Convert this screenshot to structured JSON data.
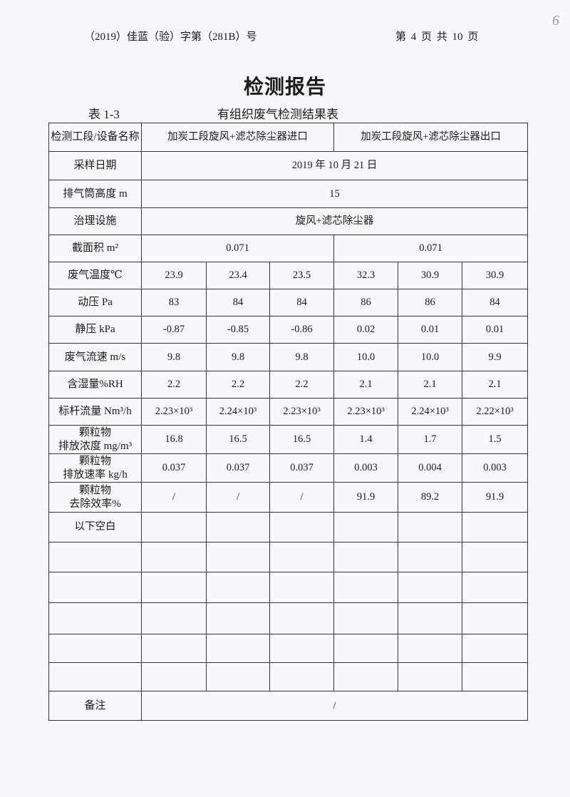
{
  "header": {
    "doc_number": "（2019）佳蓝（验）字第（281B）号",
    "page_info": "第 4 页 共 10 页",
    "handwritten_page": "6"
  },
  "title": "检测报告",
  "table_number": "表 1-3",
  "table_title": "有组织废气检测结果表",
  "table": {
    "section_label": "检测工段/设备名称",
    "inlet": "加炭工段旋风+滤芯除尘器进口",
    "outlet": "加炭工段旋风+滤芯除尘器出口",
    "sampling_date_label": "采样日期",
    "sampling_date": "2019 年 10 月 21 日",
    "stack_height_label": "排气筒高度 m",
    "stack_height": "15",
    "treatment_label": "治理设施",
    "treatment": "旋风+滤芯除尘器",
    "area_label": "截面积 m²",
    "area_inlet": "0.071",
    "area_outlet": "0.071",
    "rows": [
      {
        "label": "废气温度℃",
        "values": [
          "23.9",
          "23.4",
          "23.5",
          "32.3",
          "30.9",
          "30.9"
        ]
      },
      {
        "label": "动压 Pa",
        "values": [
          "83",
          "84",
          "84",
          "86",
          "86",
          "84"
        ]
      },
      {
        "label": "静压 kPa",
        "values": [
          "-0.87",
          "-0.85",
          "-0.86",
          "0.02",
          "0.01",
          "0.01"
        ]
      },
      {
        "label": "废气流速 m/s",
        "values": [
          "9.8",
          "9.8",
          "9.8",
          "10.0",
          "10.0",
          "9.9"
        ]
      },
      {
        "label": "含湿量%RH",
        "values": [
          "2.2",
          "2.2",
          "2.2",
          "2.1",
          "2.1",
          "2.1"
        ]
      },
      {
        "label": "标杆流量 Nm³/h",
        "values": [
          "2.23×10³",
          "2.24×10³",
          "2.23×10³",
          "2.23×10³",
          "2.24×10³",
          "2.22×10³"
        ]
      },
      {
        "label": "颗粒物\n排放浓度 mg/m³",
        "values": [
          "16.8",
          "16.5",
          "16.5",
          "1.4",
          "1.7",
          "1.5"
        ]
      },
      {
        "label": "颗粒物\n排放速率 kg/h",
        "values": [
          "0.037",
          "0.037",
          "0.037",
          "0.003",
          "0.004",
          "0.003"
        ]
      },
      {
        "label": "颗粒物\n去除效率%",
        "values": [
          "/",
          "/",
          "/",
          "91.9",
          "89.2",
          "91.9"
        ]
      }
    ],
    "blank_note": "以下空白",
    "remarks_label": "备注",
    "remarks": "/"
  }
}
